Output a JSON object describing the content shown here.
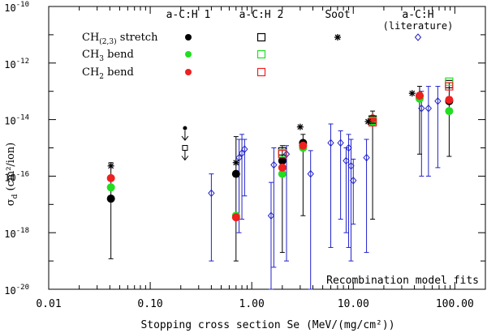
{
  "chart_data": {
    "type": "scatter",
    "xlabel": "Stopping cross section Se (MeV/(mg/cm²))",
    "ylabel_main": "σ",
    "ylabel_sub": "d",
    "ylabel_unit": " (cm²/ion)",
    "x_scale": "log",
    "y_scale": "log",
    "xlim": [
      0.01,
      200
    ],
    "ylim": [
      1e-20,
      1e-10
    ],
    "x_ticks": [
      {
        "v": 0.01,
        "label": "0.01"
      },
      {
        "v": 0.1,
        "label": "0.10"
      },
      {
        "v": 1,
        "label": "1.00"
      },
      {
        "v": 10,
        "label": "10.00"
      },
      {
        "v": 100,
        "label": "100.00"
      }
    ],
    "y_ticks": [
      {
        "v": -20,
        "base": "10",
        "exp": "-20"
      },
      {
        "v": -18,
        "base": "10",
        "exp": "-18"
      },
      {
        "v": -16,
        "base": "10",
        "exp": "-16"
      },
      {
        "v": -14,
        "base": "10",
        "exp": "-14"
      },
      {
        "v": -12,
        "base": "10",
        "exp": "-12"
      },
      {
        "v": -10,
        "base": "10",
        "exp": "-10"
      }
    ],
    "annotation": "Recombination model fits",
    "legend": {
      "columns": [
        "a-C:H 1",
        "a-C:H 2",
        "Soot"
      ],
      "literature_column_line1": "a-C:H",
      "literature_column_line2": "(literature)",
      "rows": [
        {
          "main": "CH",
          "sub": "(2,3)",
          "rest": " stretch",
          "color": "#000000"
        },
        {
          "main": "CH",
          "sub": "3",
          "rest": " bend",
          "color": "#22dd22"
        },
        {
          "main": "CH",
          "sub": "2",
          "rest": " bend",
          "color": "#ee2020"
        }
      ]
    },
    "colors": {
      "stretch": "#000000",
      "ch3": "#22dd22",
      "ch2": "#ee2020",
      "literature": "#2222cc"
    },
    "series": [
      {
        "name": "a-C:H 1 CH(2,3) stretch",
        "marker": "filled-circle",
        "color": "#000000",
        "points": [
          [
            0.041,
            1.6e-17
          ],
          [
            0.7,
            1.2e-16
          ],
          [
            2.0,
            3.5e-16
          ],
          [
            3.2,
            1.5e-15
          ],
          [
            15.5,
            9.5e-15
          ],
          [
            45,
            7e-14
          ],
          [
            88,
            4.5e-14
          ]
        ],
        "err_low": [
          1.2e-19,
          1e-19,
          2e-19,
          4e-18,
          3e-18,
          6e-16,
          5e-16
        ],
        "err_high": [
          3e-16,
          2.5e-15,
          1.2e-15,
          3e-15,
          2e-14,
          1.5e-13,
          2e-13
        ]
      },
      {
        "name": "a-C:H 1 CH3 bend",
        "marker": "filled-circle",
        "color": "#22dd22",
        "points": [
          [
            0.041,
            4e-17
          ],
          [
            0.7,
            4e-18
          ],
          [
            2.0,
            1.2e-16
          ],
          [
            3.2,
            1e-15
          ],
          [
            15.5,
            8e-15
          ],
          [
            45,
            5.5e-14
          ],
          [
            88,
            2e-14
          ]
        ]
      },
      {
        "name": "a-C:H 1 CH2 bend",
        "marker": "filled-circle",
        "color": "#ee2020",
        "points": [
          [
            0.041,
            8.5e-17
          ],
          [
            0.7,
            3.5e-18
          ],
          [
            2.0,
            2e-16
          ],
          [
            3.2,
            1.2e-15
          ],
          [
            15.5,
            1.1e-14
          ],
          [
            45,
            7e-14
          ],
          [
            88,
            5e-14
          ]
        ]
      },
      {
        "name": "a-C:H 2 CH(2,3) stretch",
        "marker": "open-square",
        "color": "#000000",
        "points": [
          [
            2.0,
            7.5e-16
          ],
          [
            15.5,
            1e-14
          ],
          [
            88,
            1.8e-13
          ]
        ]
      },
      {
        "name": "a-C:H 2 CH3 bend",
        "marker": "open-square",
        "color": "#22dd22",
        "points": [
          [
            2.0,
            6.5e-16
          ],
          [
            15.5,
            9e-15
          ],
          [
            88,
            2.2e-13
          ]
        ]
      },
      {
        "name": "a-C:H 2 CH2 bend",
        "marker": "open-square",
        "color": "#ee2020",
        "points": [
          [
            2.0,
            6e-16
          ],
          [
            15.5,
            8e-15
          ],
          [
            88,
            1.5e-13
          ]
        ]
      },
      {
        "name": "Soot",
        "marker": "asterisk",
        "color": "#000000",
        "points": [
          [
            0.041,
            2.3e-16
          ],
          [
            0.7,
            3e-16
          ],
          [
            3.0,
            5.5e-15
          ],
          [
            14,
            8.5e-15
          ],
          [
            38,
            8.5e-14
          ]
        ]
      },
      {
        "name": "a-C:H (literature)",
        "marker": "open-diamond",
        "color": "#2222cc",
        "points": [
          [
            0.4,
            2.5e-17
          ],
          [
            0.75,
            4.5e-16
          ],
          [
            0.8,
            6.5e-16
          ],
          [
            0.85,
            9e-16
          ],
          [
            1.55,
            4e-18
          ],
          [
            1.65,
            2.5e-16
          ],
          [
            2.2,
            6e-16
          ],
          [
            3.8,
            1.2e-16
          ],
          [
            6.0,
            1.5e-15
          ],
          [
            7.5,
            1.5e-15
          ],
          [
            8.5,
            3.5e-16
          ],
          [
            9.0,
            1e-15
          ],
          [
            9.5,
            2.3e-16
          ],
          [
            10.0,
            7e-17
          ],
          [
            13.5,
            4.5e-16
          ],
          [
            47,
            2.5e-14
          ],
          [
            55,
            2.5e-14
          ],
          [
            68,
            4.5e-14
          ]
        ],
        "err_low": [
          1e-19,
          1e-18,
          3e-18,
          2e-17,
          1e-20,
          6e-20,
          1e-19,
          1e-20,
          3e-19,
          3e-18,
          1e-18,
          3e-19,
          1e-19,
          2e-18,
          2e-19,
          1e-16,
          1e-16,
          2e-16
        ],
        "err_high": [
          1.2e-16,
          2e-15,
          3e-15,
          2e-15,
          6e-17,
          1e-15,
          1.2e-15,
          8e-16,
          7e-15,
          4e-15,
          1e-15,
          3e-15,
          2e-15,
          4e-16,
          2e-15,
          1e-13,
          1.5e-13,
          1.5e-13
        ]
      }
    ],
    "upper_limit_points": [
      {
        "name": "a-C:H 1",
        "marker": "filled-circle",
        "x": 0.22,
        "y": 5e-15
      },
      {
        "name": "a-C:H 2",
        "marker": "open-square",
        "x": 0.22,
        "y": 1e-15
      }
    ]
  }
}
